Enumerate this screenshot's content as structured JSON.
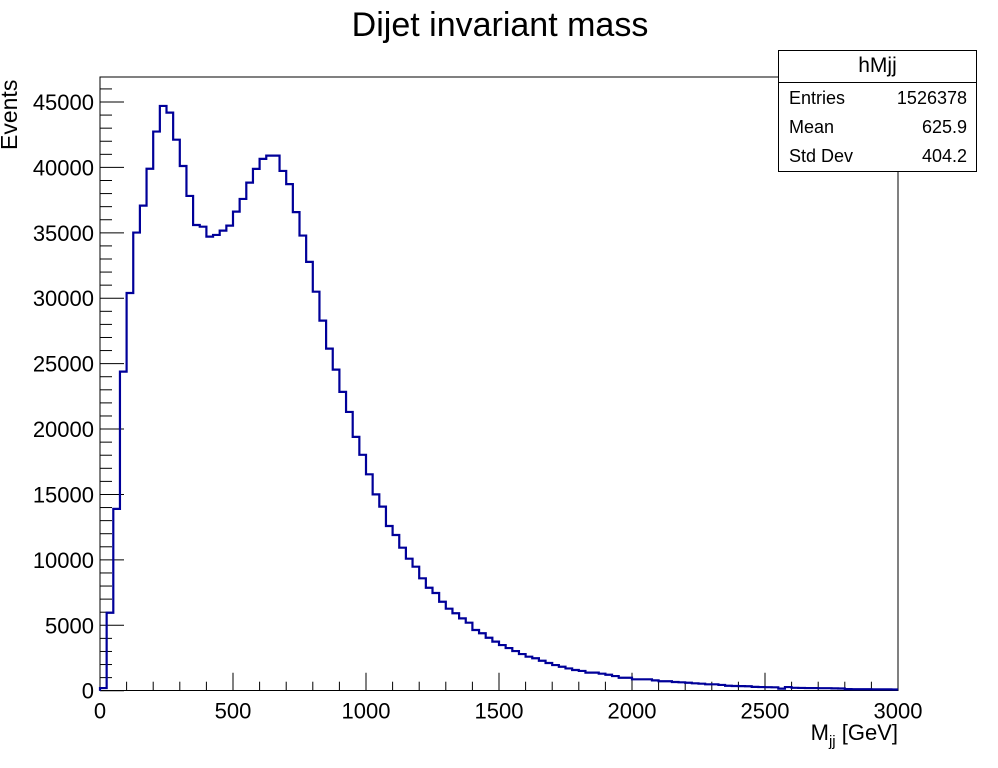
{
  "chart_data": {
    "type": "histogram",
    "title": "Dijet invariant mass",
    "xlabel_main": "M",
    "xlabel_sub": "jj",
    "xlabel_unit": " [GeV]",
    "ylabel": "Events",
    "xlim": [
      0,
      3000
    ],
    "ylim": [
      0,
      47000
    ],
    "bin_width": 25,
    "line_color": "#000099",
    "x_ticks": [
      0,
      500,
      1000,
      1500,
      2000,
      2500,
      3000
    ],
    "x_tick_labels": [
      "0",
      "500",
      "1000",
      "1500",
      "2000",
      "2500",
      "3000"
    ],
    "y_ticks": [
      0,
      5000,
      10000,
      15000,
      20000,
      25000,
      30000,
      35000,
      40000,
      45000
    ],
    "y_tick_labels": [
      "0",
      "5000",
      "10000",
      "15000",
      "20000",
      "25000",
      "30000",
      "35000",
      "40000",
      "45000"
    ],
    "values": [
      200,
      5960,
      13900,
      24390,
      30400,
      35020,
      37080,
      39900,
      42740,
      44700,
      44190,
      42120,
      40110,
      37820,
      35600,
      35470,
      34710,
      34840,
      35170,
      35550,
      36620,
      37590,
      38840,
      39890,
      40650,
      40900,
      40900,
      39730,
      38720,
      36580,
      34790,
      32780,
      30500,
      28290,
      26150,
      24540,
      22840,
      21310,
      19400,
      18030,
      16540,
      15010,
      14070,
      12590,
      11900,
      10930,
      10090,
      9480,
      8590,
      7870,
      7470,
      6800,
      6270,
      5920,
      5530,
      5200,
      4640,
      4390,
      4050,
      3750,
      3490,
      3260,
      3030,
      2800,
      2600,
      2480,
      2290,
      2120,
      1960,
      1830,
      1700,
      1580,
      1510,
      1380,
      1380,
      1300,
      1220,
      1120,
      990,
      990,
      870,
      870,
      870,
      790,
      720,
      720,
      665,
      640,
      610,
      565,
      535,
      490,
      490,
      440,
      380,
      360,
      350,
      340,
      290,
      280,
      270,
      260,
      160,
      280,
      220,
      210,
      200,
      200,
      190,
      190,
      180,
      170,
      120,
      110,
      110,
      110,
      100,
      100,
      100,
      90
    ],
    "grid": false,
    "legend": "none"
  },
  "stats_box": {
    "name": "hMjj",
    "rows": [
      {
        "label": "Entries",
        "value": "1526378"
      },
      {
        "label": "Mean",
        "value": "625.9"
      },
      {
        "label": "Std Dev",
        "value": "404.2"
      }
    ]
  }
}
